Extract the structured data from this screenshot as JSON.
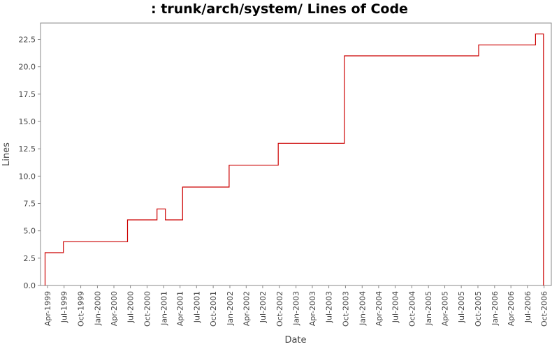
{
  "chart_data": {
    "type": "line",
    "title": ": trunk/arch/system/ Lines of Code",
    "xlabel": "Date",
    "ylabel": "Lines",
    "ylim": [
      0,
      24
    ],
    "yticks": [
      "0.0",
      "2.5",
      "5.0",
      "7.5",
      "10.0",
      "12.5",
      "15.0",
      "17.5",
      "20.0",
      "22.5"
    ],
    "xlim": [
      "1999-02-21",
      "2006-11-10"
    ],
    "xticks": [
      {
        "date": "1999-04-01",
        "label": "Apr-1999"
      },
      {
        "date": "1999-07-01",
        "label": "Jul-1999"
      },
      {
        "date": "1999-10-01",
        "label": "Oct-1999"
      },
      {
        "date": "2000-01-01",
        "label": "Jan-2000"
      },
      {
        "date": "2000-04-01",
        "label": "Apr-2000"
      },
      {
        "date": "2000-07-01",
        "label": "Jul-2000"
      },
      {
        "date": "2000-10-01",
        "label": "Oct-2000"
      },
      {
        "date": "2001-01-01",
        "label": "Jan-2001"
      },
      {
        "date": "2001-04-01",
        "label": "Apr-2001"
      },
      {
        "date": "2001-07-01",
        "label": "Jul-2001"
      },
      {
        "date": "2001-10-01",
        "label": "Oct-2001"
      },
      {
        "date": "2002-01-01",
        "label": "Jan-2002"
      },
      {
        "date": "2002-04-01",
        "label": "Apr-2002"
      },
      {
        "date": "2002-07-01",
        "label": "Jul-2002"
      },
      {
        "date": "2002-10-01",
        "label": "Oct-2002"
      },
      {
        "date": "2003-01-01",
        "label": "Jan-2003"
      },
      {
        "date": "2003-04-01",
        "label": "Apr-2003"
      },
      {
        "date": "2003-07-01",
        "label": "Jul-2003"
      },
      {
        "date": "2003-10-01",
        "label": "Oct-2003"
      },
      {
        "date": "2004-01-01",
        "label": "Jan-2004"
      },
      {
        "date": "2004-04-01",
        "label": "Apr-2004"
      },
      {
        "date": "2004-07-01",
        "label": "Jul-2004"
      },
      {
        "date": "2004-10-01",
        "label": "Oct-2004"
      },
      {
        "date": "2005-01-01",
        "label": "Jan-2005"
      },
      {
        "date": "2005-04-01",
        "label": "Apr-2005"
      },
      {
        "date": "2005-07-01",
        "label": "Jul-2005"
      },
      {
        "date": "2005-10-01",
        "label": "Oct-2005"
      },
      {
        "date": "2006-01-01",
        "label": "Jan-2006"
      },
      {
        "date": "2006-04-01",
        "label": "Apr-2006"
      },
      {
        "date": "2006-07-01",
        "label": "Jul-2006"
      },
      {
        "date": "2006-10-01",
        "label": "Oct-2006"
      }
    ],
    "grid": false,
    "legend": "none",
    "step": true,
    "series": [
      {
        "color": "#cc0000",
        "points": [
          {
            "date": "1999-03-18",
            "value": 0
          },
          {
            "date": "1999-03-18",
            "value": 3
          },
          {
            "date": "1999-06-27",
            "value": 4
          },
          {
            "date": "2000-06-15",
            "value": 6
          },
          {
            "date": "2000-11-25",
            "value": 7
          },
          {
            "date": "2001-01-10",
            "value": 6
          },
          {
            "date": "2001-04-15",
            "value": 9
          },
          {
            "date": "2001-12-28",
            "value": 11
          },
          {
            "date": "2002-09-25",
            "value": 13
          },
          {
            "date": "2003-09-25",
            "value": 21
          },
          {
            "date": "2005-10-05",
            "value": 22
          },
          {
            "date": "2006-08-15",
            "value": 23
          },
          {
            "date": "2006-09-28",
            "value": 0
          }
        ]
      }
    ]
  }
}
